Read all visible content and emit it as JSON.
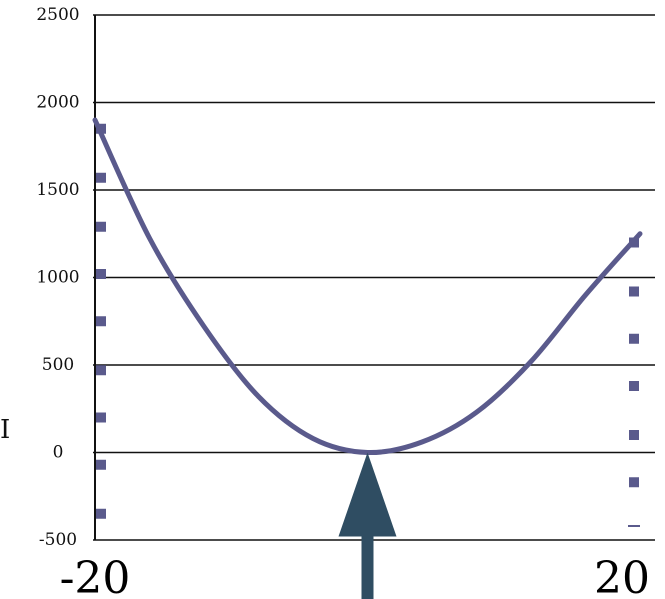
{
  "chart_data": {
    "type": "line",
    "title": "",
    "xlabel": "",
    "ylabel": "",
    "xlim": [
      -20,
      20
    ],
    "ylim": [
      -500,
      2500
    ],
    "y_ticks": [
      2500,
      2000,
      1500,
      1000,
      500,
      0,
      -500
    ],
    "y_tick_labels": [
      "2500",
      "2000",
      "1500",
      "1000",
      "500",
      "0",
      "-500"
    ],
    "x_tick_labels": [
      "-20",
      "20"
    ],
    "grid": "horizontal",
    "series": [
      {
        "kind": "curve",
        "color": "#5a5a8c",
        "x": [
          -20,
          -16,
          -12,
          -8,
          -4,
          0,
          4,
          8,
          12,
          16,
          20
        ],
        "y": [
          1900,
          1225,
          720,
          320,
          80,
          0,
          60,
          230,
          520,
          900,
          1250
        ]
      }
    ],
    "marker_columns": [
      {
        "x": -20,
        "color": "#5a5a8c",
        "y": [
          1850,
          1570,
          1290,
          1020,
          750,
          470,
          200,
          -70,
          -350
        ]
      },
      {
        "x": 20,
        "color": "#5a5a8c",
        "y": [
          1200,
          920,
          650,
          380,
          100,
          -170,
          -420
        ]
      }
    ],
    "annotation": {
      "type": "arrow",
      "points_to_x": 0,
      "points_to_y": 0,
      "color": "#2f4d62"
    },
    "edge_text": "I"
  },
  "colors": {
    "curve": "#5a5a8c",
    "markers": "#5a5a8c",
    "arrow": "#2f4d62",
    "grid": "#111111"
  }
}
